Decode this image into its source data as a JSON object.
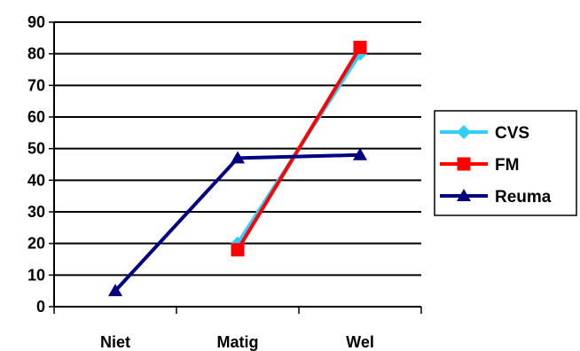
{
  "chart_data": {
    "type": "line",
    "categories": [
      "Niet",
      "Matig",
      "Wel"
    ],
    "title": "",
    "xlabel": "",
    "ylabel": "",
    "ylim": [
      0,
      90
    ],
    "yticks": [
      0,
      10,
      20,
      30,
      40,
      50,
      60,
      70,
      80,
      90
    ],
    "grid": true,
    "legend_position": "right",
    "series": [
      {
        "name": "CVS",
        "values": [
          null,
          20,
          80
        ],
        "color": "#33ccff",
        "marker": "diamond"
      },
      {
        "name": "FM",
        "values": [
          null,
          18,
          82
        ],
        "color": "#ff0000",
        "marker": "square"
      },
      {
        "name": "Reuma",
        "values": [
          5,
          47,
          48
        ],
        "color": "#000080",
        "marker": "triangle"
      }
    ]
  }
}
